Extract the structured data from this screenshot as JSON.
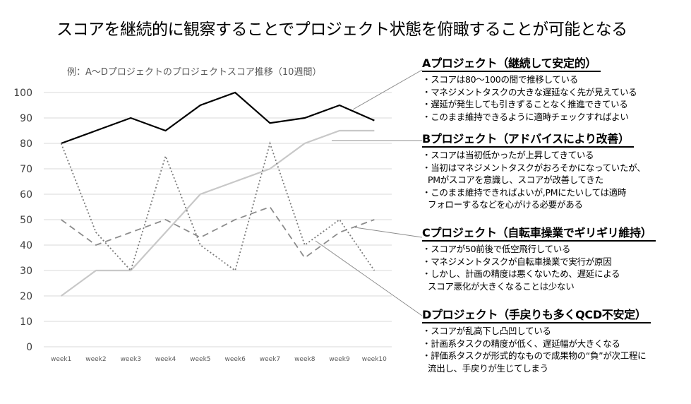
{
  "slide_title": "スコアを継続的に観察することでプロジェクト状態を俯瞰することが可能となる",
  "chart_data": {
    "type": "line",
    "title": "例：A〜Dプロジェクトのプロジェクトスコア推移（10週間）",
    "categories": [
      "week1",
      "week2",
      "week3",
      "week4",
      "week5",
      "week6",
      "week7",
      "week8",
      "week9",
      "week10"
    ],
    "ylim": [
      0,
      100
    ],
    "yticks": [
      0,
      10,
      20,
      30,
      40,
      50,
      60,
      70,
      80,
      90,
      100
    ],
    "grid": true,
    "series": [
      {
        "name": "Aプロジェクト",
        "style": "solid-black",
        "values": [
          80,
          85,
          90,
          85,
          95,
          100,
          88,
          90,
          95,
          89
        ]
      },
      {
        "name": "Bプロジェクト",
        "style": "solid-lightgray",
        "values": [
          20,
          30,
          30,
          45,
          60,
          65,
          70,
          80,
          85,
          85
        ]
      },
      {
        "name": "Cプロジェクト",
        "style": "dashed-gray",
        "values": [
          50,
          40,
          45,
          50,
          43,
          50,
          55,
          35,
          45,
          50
        ]
      },
      {
        "name": "Dプロジェクト",
        "style": "dotted-gray",
        "values": [
          80,
          45,
          30,
          75,
          40,
          30,
          80,
          40,
          50,
          30
        ]
      }
    ],
    "colors": {
      "A": "#000000",
      "B": "#c8c8c8",
      "C": "#8c8c8c",
      "D": "#7a7a7a"
    }
  },
  "annotations": [
    {
      "title": "Aプロジェクト（継続して安定的）",
      "bullets": [
        "・スコアは80〜100の間で推移している",
        "・マネジメントタスクの大きな遅延なく先が見えている",
        "・遅延が発生しても引きずることなく推進できている",
        "・このまま維持できるように適時チェックすればよい"
      ]
    },
    {
      "title": "Bプロジェクト（アドバイスにより改善）",
      "bullets": [
        "・スコアは当初低かったが上昇してきている",
        "・当初はマネジメントタスクがおろそかになっていたが、",
        "PMがスコアを意識し、スコアが改善してきた",
        "・このまま維持できればよいが,PMにたいしては適時",
        "フォローするなどを心がける必要がある"
      ],
      "sub_lines": [
        2,
        4
      ]
    },
    {
      "title": "Cプロジェクト（自転車操業でギリギリ維持）",
      "bullets": [
        "・スコアが50前後で低空飛行している",
        "・マネジメントタスクが自転車操業で実行が原因",
        "・しかし、計画の精度は悪くないため、遅延による",
        "スコア悪化が大きくなることは少ない"
      ],
      "sub_lines": [
        3
      ]
    },
    {
      "title": "Dプロジェクト（手戻りも多くQCD不安定）",
      "bullets": [
        "・スコアが乱高下し凸凹している",
        "・計画系タスクの精度が低く、遅延幅が大きくなる",
        "・評価系タスクが形式的なもので成果物の“負”が次工程に",
        "流出し、手戻りが生じてしまう"
      ],
      "sub_lines": [
        3
      ]
    }
  ]
}
